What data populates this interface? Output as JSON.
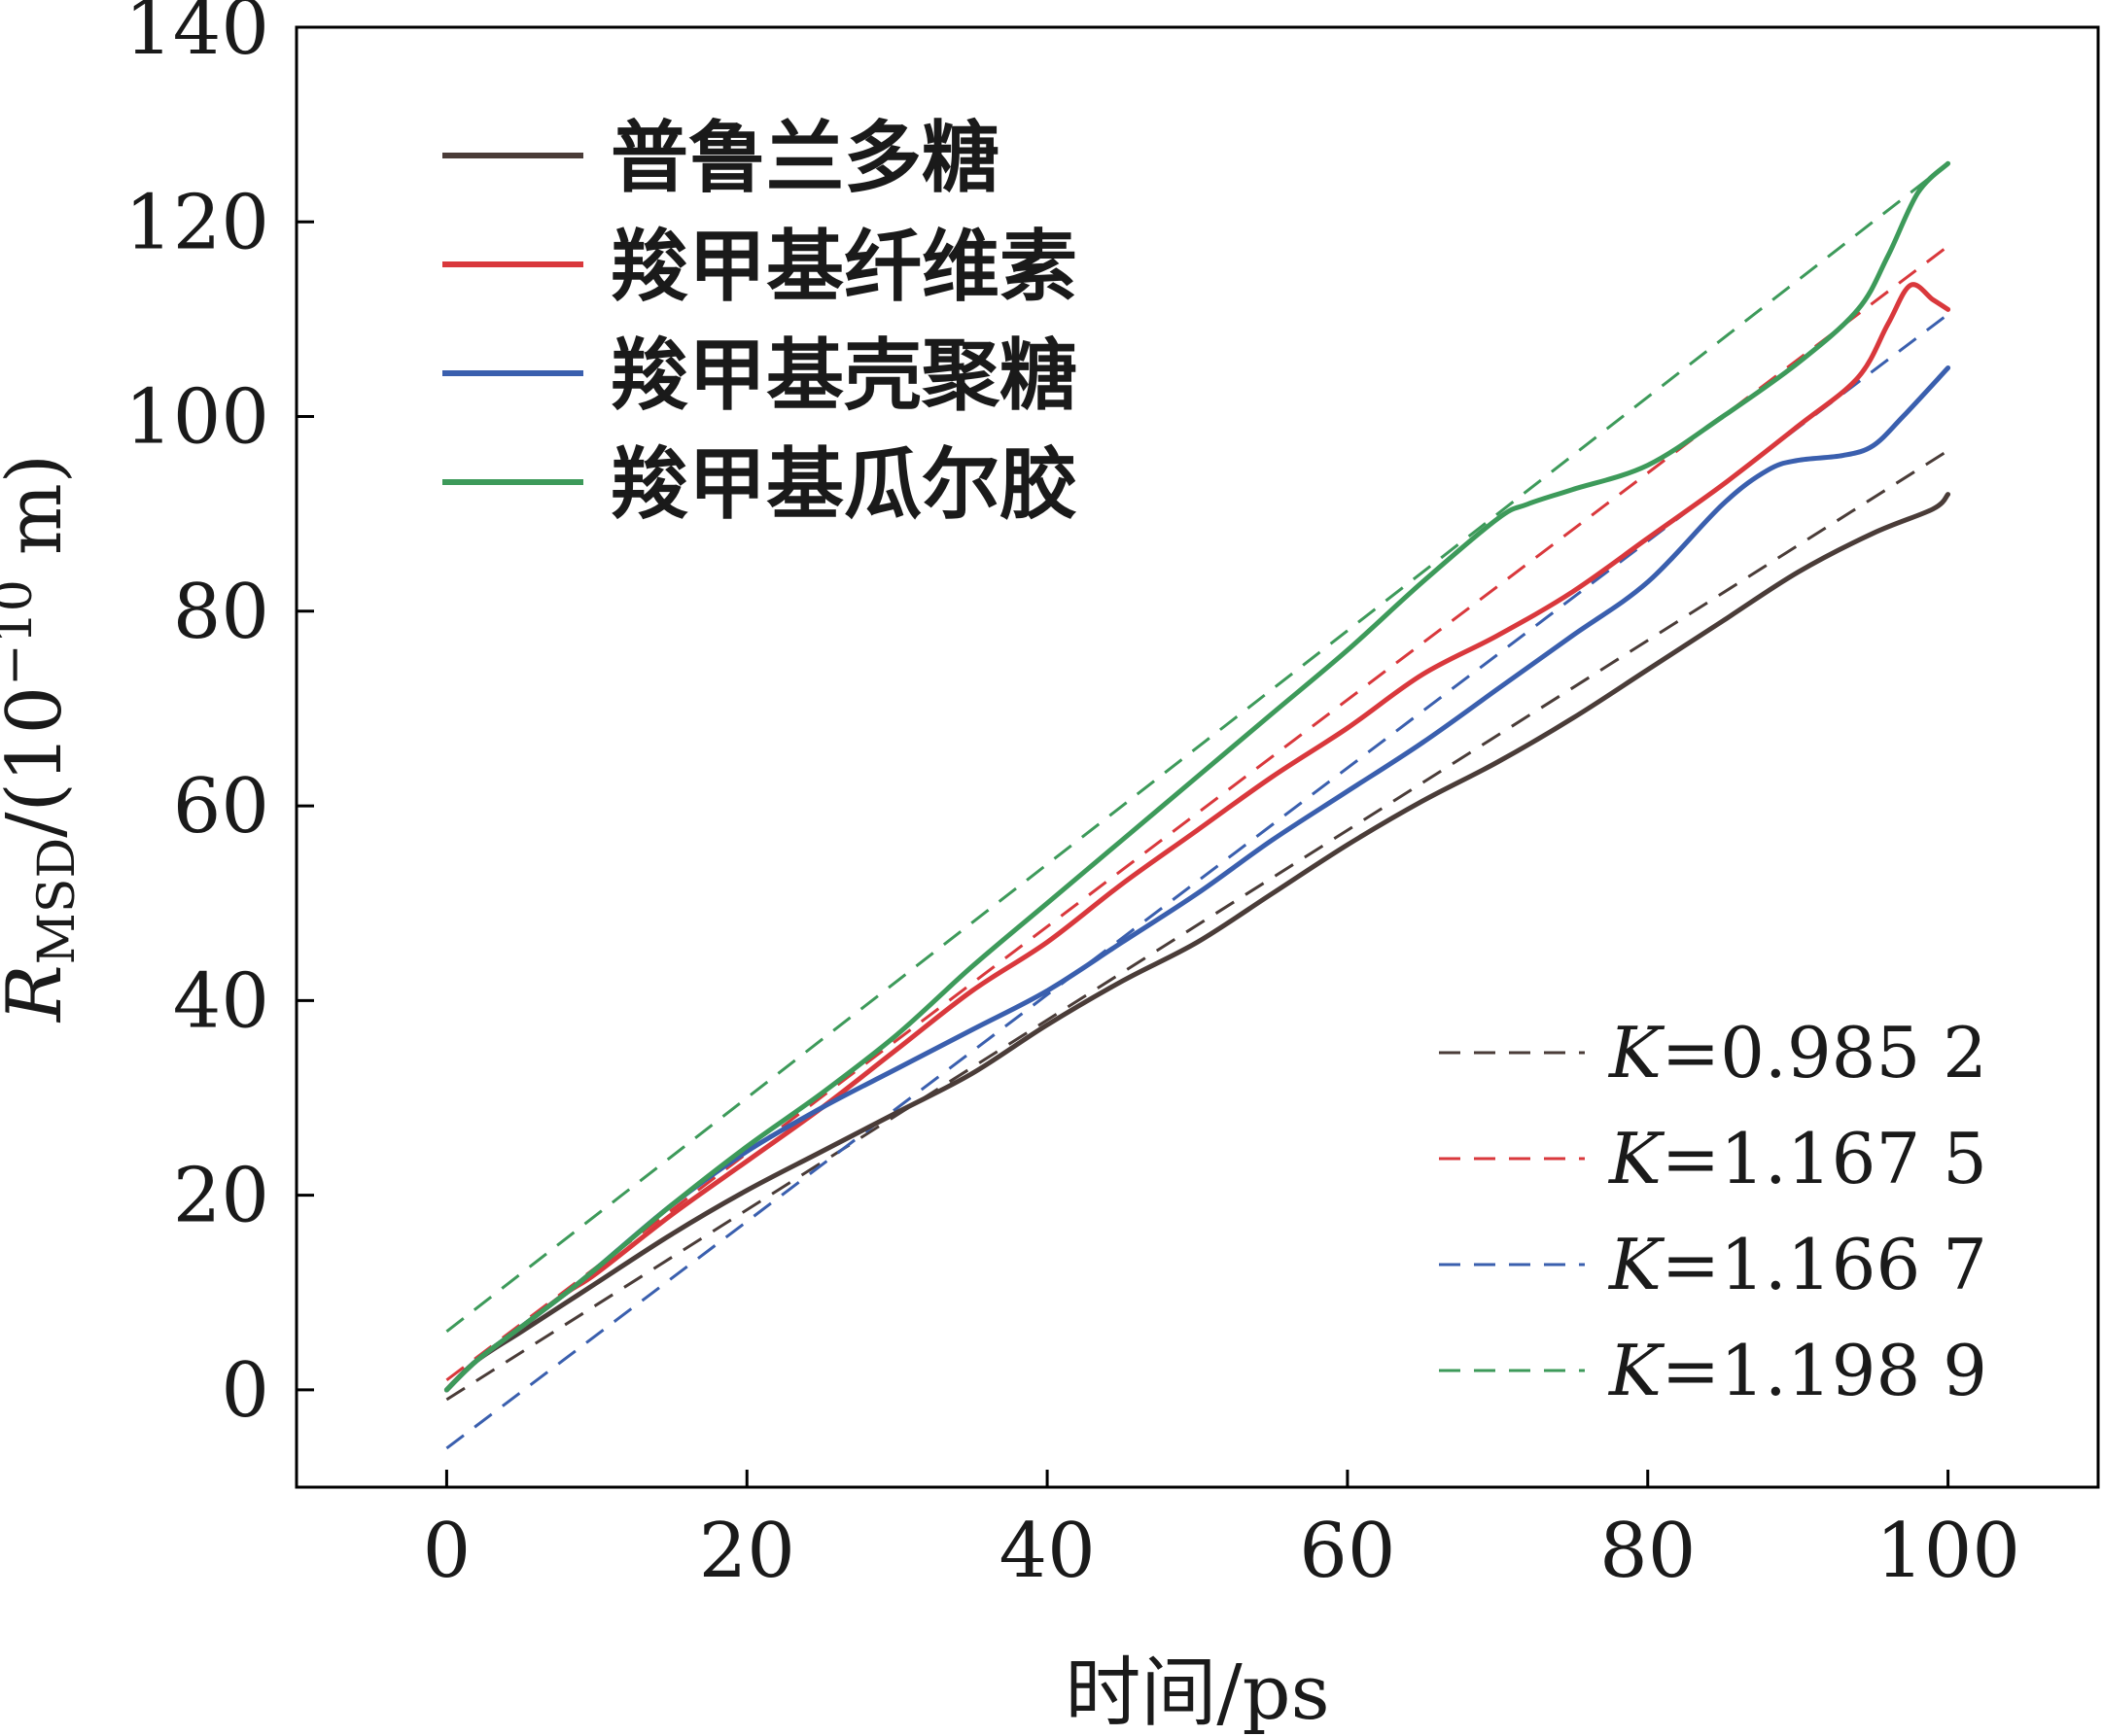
{
  "chart_data": {
    "type": "line",
    "title": "",
    "xlabel": "时间/ps",
    "ylabel": {
      "symbol": "R",
      "subscript": "MSD",
      "unit_prefix": "/(10",
      "exponent": "−10",
      "unit_suffix": " m)"
    },
    "xlim": [
      -10,
      110
    ],
    "ylim": [
      -10,
      140
    ],
    "xticks": [
      0,
      20,
      40,
      60,
      80,
      100
    ],
    "yticks": [
      0,
      20,
      40,
      60,
      80,
      100,
      120,
      140
    ],
    "colors": {
      "pullulan": "#4a3c38",
      "cmc": "#d9383c",
      "cmcs": "#3a5fae",
      "cmgg": "#3d9a5a"
    },
    "series": [
      {
        "key": "pullulan",
        "name": "普鲁兰多糖",
        "color": "#4a3c38",
        "x": [
          0,
          2,
          5,
          8,
          10,
          15,
          20,
          25,
          30,
          35,
          40,
          45,
          50,
          55,
          60,
          65,
          70,
          75,
          80,
          85,
          90,
          95,
          99,
          100
        ],
        "y": [
          0,
          3,
          6,
          9,
          11,
          16,
          20.5,
          24.5,
          28.5,
          32.5,
          37.5,
          42,
          46,
          51,
          56,
          60.5,
          64.5,
          69,
          74,
          79,
          84,
          88,
          90.5,
          92
        ]
      },
      {
        "key": "cmc",
        "name": "羧甲基纤维素",
        "color": "#d9383c",
        "x": [
          0,
          2,
          5,
          8,
          10,
          15,
          20,
          25,
          30,
          35,
          40,
          45,
          50,
          55,
          60,
          65,
          70,
          75,
          80,
          85,
          90,
          94,
          96,
          97.5,
          99,
          100
        ],
        "y": [
          0,
          3,
          6.5,
          10,
          12,
          18,
          23.5,
          29,
          35,
          41,
          46,
          52,
          57.5,
          63,
          68,
          73.5,
          77.5,
          82,
          87.5,
          93,
          99,
          104,
          109.5,
          113.5,
          112,
          111
        ]
      },
      {
        "key": "cmcs",
        "name": "羧甲基壳聚糖",
        "color": "#3a5fae",
        "x": [
          0,
          2,
          5,
          8,
          10,
          15,
          20,
          25,
          30,
          35,
          40,
          45,
          50,
          55,
          60,
          65,
          70,
          75,
          80,
          85,
          88,
          90,
          93,
          95,
          97,
          100
        ],
        "y": [
          0,
          3,
          6.5,
          10,
          12.5,
          19,
          24.5,
          29,
          33,
          37,
          41,
          46,
          51,
          56.5,
          61.5,
          66.5,
          72,
          77.5,
          83,
          91,
          94.5,
          95.5,
          96,
          97,
          100,
          105
        ]
      },
      {
        "key": "cmgg",
        "name": "羧甲基瓜尔胶",
        "color": "#3d9a5a",
        "x": [
          0,
          2,
          5,
          8,
          10,
          15,
          20,
          25,
          30,
          35,
          40,
          45,
          50,
          55,
          60,
          65,
          70,
          72,
          75,
          80,
          85,
          90,
          94,
          96,
          98,
          100
        ],
        "y": [
          0,
          3,
          6.5,
          10,
          12.5,
          19,
          25,
          30.5,
          36.5,
          43.5,
          50,
          56.5,
          63,
          69.5,
          76,
          83,
          89.5,
          91,
          92.5,
          95,
          100,
          105.5,
          111,
          116.5,
          123,
          126
        ]
      }
    ],
    "fit_lines": [
      {
        "key": "pullulan",
        "label_symbol": "K",
        "label_value": "=0.985 2",
        "color": "#4a3c38",
        "x": [
          0,
          100
        ],
        "y": [
          -1,
          96.5
        ]
      },
      {
        "key": "cmc",
        "label_symbol": "K",
        "label_value": "=1.167 5",
        "color": "#d9383c",
        "x": [
          0,
          100
        ],
        "y": [
          1,
          117.5
        ]
      },
      {
        "key": "cmcs",
        "label_symbol": "K",
        "label_value": "=1.166 7",
        "color": "#3a5fae",
        "x": [
          0,
          100
        ],
        "y": [
          -6,
          110.5
        ]
      },
      {
        "key": "cmgg",
        "label_symbol": "K",
        "label_value": "=1.198 9",
        "color": "#3d9a5a",
        "x": [
          0,
          100
        ],
        "y": [
          6,
          126
        ]
      }
    ]
  }
}
